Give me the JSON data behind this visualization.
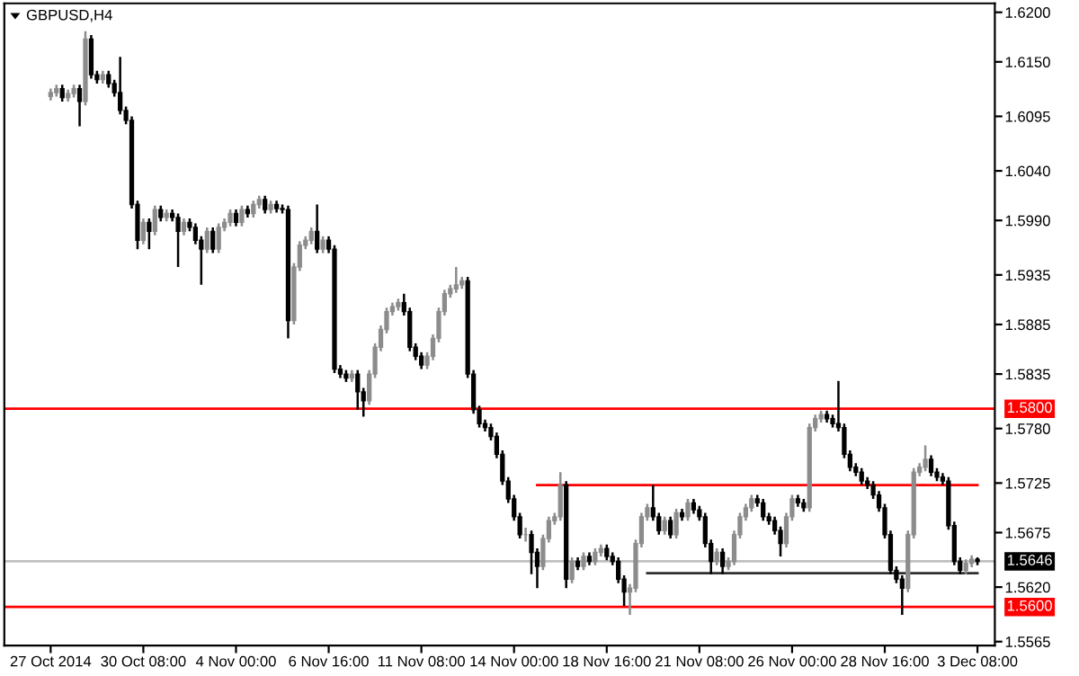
{
  "chart_data": {
    "type": "candlestick",
    "title": "GBPUSD,H4",
    "categories": [
      "27 Oct 2014",
      null,
      null,
      null,
      null,
      null,
      null,
      null,
      null,
      null,
      null,
      null,
      null,
      null,
      null,
      null,
      "30 Oct 08:00",
      null,
      null,
      null,
      null,
      null,
      null,
      null,
      null,
      null,
      null,
      null,
      null,
      null,
      null,
      null,
      "4 Nov 00:00",
      null,
      null,
      null,
      null,
      null,
      null,
      null,
      null,
      null,
      null,
      null,
      null,
      null,
      null,
      null,
      "6 Nov 16:00",
      null,
      null,
      null,
      null,
      null,
      null,
      null,
      null,
      null,
      null,
      null,
      null,
      null,
      null,
      null,
      "11 Nov 08:00",
      null,
      null,
      null,
      null,
      null,
      null,
      null,
      null,
      null,
      null,
      null,
      null,
      null,
      null,
      null,
      "14 Nov 00:00",
      null,
      null,
      null,
      null,
      null,
      null,
      null,
      null,
      null,
      null,
      null,
      null,
      null,
      null,
      null,
      "18 Nov 16:00",
      null,
      null,
      null,
      null,
      null,
      null,
      null,
      null,
      null,
      null,
      null,
      null,
      null,
      null,
      null,
      "21 Nov 08:00",
      null,
      null,
      null,
      null,
      null,
      null,
      null,
      null,
      null,
      null,
      null,
      null,
      null,
      null,
      null,
      "26 Nov 00:00",
      null,
      null,
      null,
      null,
      null,
      null,
      null,
      null,
      null,
      null,
      null,
      null,
      null,
      null,
      null,
      "28 Nov 16:00",
      null,
      null,
      null,
      null,
      null,
      null,
      null,
      null,
      null,
      null,
      null,
      null,
      null,
      null,
      null,
      "3 Dec 08:00"
    ],
    "colors": [
      "#8c8c8c",
      "#8c8c8c",
      "#000000",
      "#8c8c8c",
      "#8c8c8c",
      "#000000",
      "#8c8c8c",
      "#000000",
      "#000000",
      "#8c8c8c",
      "#000000",
      "#000000",
      "#000000",
      "#000000",
      "#000000",
      "#000000",
      "#8c8c8c",
      "#000000",
      "#8c8c8c",
      "#000000",
      "#8c8c8c",
      "#000000",
      "#000000",
      "#8c8c8c",
      "#000000",
      "#000000",
      "#000000",
      "#8c8c8c",
      "#000000",
      "#8c8c8c",
      "#8c8c8c",
      "#8c8c8c",
      "#000000",
      "#8c8c8c",
      "#000000",
      "#8c8c8c",
      "#8c8c8c",
      "#000000",
      "#8c8c8c",
      "#000000",
      "#000000",
      "#000000",
      "#8c8c8c",
      "#8c8c8c",
      "#8c8c8c",
      "#8c8c8c",
      "#000000",
      "#8c8c8c",
      "#000000",
      "#000000",
      "#000000",
      "#000000",
      "#8c8c8c",
      "#000000",
      "#000000",
      "#8c8c8c",
      "#8c8c8c",
      "#8c8c8c",
      "#8c8c8c",
      "#8c8c8c",
      "#8c8c8c",
      "#000000",
      "#000000",
      "#000000",
      "#000000",
      "#8c8c8c",
      "#8c8c8c",
      "#8c8c8c",
      "#8c8c8c",
      "#8c8c8c",
      "#8c8c8c",
      "#8c8c8c",
      "#000000",
      "#000000",
      "#000000",
      "#000000",
      "#000000",
      "#000000",
      "#000000",
      "#000000",
      "#000000",
      "#000000",
      "#8c8c8c",
      "#000000",
      "#000000",
      "#8c8c8c",
      "#8c8c8c",
      "#8c8c8c",
      "#8c8c8c",
      "#000000",
      "#8c8c8c",
      "#000000",
      "#8c8c8c",
      "#000000",
      "#8c8c8c",
      "#8c8c8c",
      "#000000",
      "#000000",
      "#000000",
      "#000000",
      "#8c8c8c",
      "#8c8c8c",
      "#8c8c8c",
      "#8c8c8c",
      "#000000",
      "#000000",
      "#8c8c8c",
      "#000000",
      "#8c8c8c",
      "#000000",
      "#8c8c8c",
      "#000000",
      "#000000",
      "#000000",
      "#000000",
      "#8c8c8c",
      "#000000",
      "#8c8c8c",
      "#8c8c8c",
      "#8c8c8c",
      "#8c8c8c",
      "#8c8c8c",
      "#000000",
      "#000000",
      "#000000",
      "#000000",
      "#000000",
      "#8c8c8c",
      "#8c8c8c",
      "#000000",
      "#000000",
      "#8c8c8c",
      "#8c8c8c",
      "#8c8c8c",
      "#000000",
      "#000000",
      "#000000",
      "#000000",
      "#000000",
      "#000000",
      "#000000",
      "#000000",
      "#000000",
      "#000000",
      "#000000",
      "#000000",
      "#000000",
      "#000000",
      "#8c8c8c",
      "#8c8c8c",
      "#8c8c8c",
      "#8c8c8c",
      "#000000",
      "#000000",
      "#000000",
      "#000000",
      "#000000",
      "#000000",
      "#8c8c8c",
      "#8c8c8c",
      "#000000"
    ],
    "ohlc": [
      [
        1.6115,
        1.6123,
        1.6111,
        1.6119
      ],
      [
        1.6119,
        1.6127,
        1.6115,
        1.6123
      ],
      [
        1.6123,
        1.6127,
        1.611,
        1.6114
      ],
      [
        1.6114,
        1.6122,
        1.611,
        1.6118
      ],
      [
        1.6118,
        1.6127,
        1.6114,
        1.6123
      ],
      [
        1.6123,
        1.6127,
        1.6085,
        1.611
      ],
      [
        1.611,
        1.6181,
        1.6106,
        1.6173
      ],
      [
        1.6173,
        1.6177,
        1.6133,
        1.6137
      ],
      [
        1.6137,
        1.6141,
        1.6128,
        1.6132
      ],
      [
        1.6132,
        1.6141,
        1.6128,
        1.6137
      ],
      [
        1.6137,
        1.6141,
        1.6124,
        1.6128
      ],
      [
        1.6128,
        1.6132,
        1.6115,
        1.6119
      ],
      [
        1.6119,
        1.6155,
        1.6097,
        1.6101
      ],
      [
        1.6101,
        1.6105,
        1.6087,
        1.6091
      ],
      [
        1.6091,
        1.6095,
        1.6002,
        1.6006
      ],
      [
        1.6006,
        1.601,
        1.5961,
        1.597
      ],
      [
        1.597,
        1.5992,
        1.5966,
        1.5988
      ],
      [
        1.5988,
        1.5992,
        1.5961,
        1.5979
      ],
      [
        1.5979,
        1.6005,
        1.5975,
        1.6001
      ],
      [
        1.6001,
        1.6005,
        1.5989,
        1.5993
      ],
      [
        1.5993,
        1.6001,
        1.5989,
        1.5997
      ],
      [
        1.5997,
        1.6001,
        1.5989,
        1.5993
      ],
      [
        1.5993,
        1.5997,
        1.5943,
        1.5979
      ],
      [
        1.5979,
        1.5992,
        1.5975,
        1.5988
      ],
      [
        1.5988,
        1.5992,
        1.5979,
        1.5983
      ],
      [
        1.5983,
        1.5987,
        1.5966,
        1.597
      ],
      [
        1.597,
        1.5974,
        1.5925,
        1.5961
      ],
      [
        1.5961,
        1.5983,
        1.5957,
        1.5979
      ],
      [
        1.5979,
        1.5983,
        1.5957,
        1.5961
      ],
      [
        1.5961,
        1.5987,
        1.5957,
        1.5983
      ],
      [
        1.5983,
        1.5992,
        1.5979,
        1.5988
      ],
      [
        1.5988,
        1.6001,
        1.5984,
        1.5997
      ],
      [
        1.5997,
        1.6001,
        1.5984,
        1.5988
      ],
      [
        1.5988,
        1.6005,
        1.5984,
        1.6001
      ],
      [
        1.6001,
        1.6005,
        1.5993,
        1.5997
      ],
      [
        1.5997,
        1.601,
        1.5993,
        1.6006
      ],
      [
        1.6006,
        1.6015,
        1.6002,
        1.6011
      ],
      [
        1.6011,
        1.6015,
        1.5997,
        1.6001
      ],
      [
        1.6001,
        1.601,
        1.5997,
        1.6006
      ],
      [
        1.6006,
        1.601,
        1.5998,
        1.6002
      ],
      [
        1.6002,
        1.6006,
        1.5997,
        1.6001
      ],
      [
        1.6001,
        1.6005,
        1.5871,
        1.5889
      ],
      [
        1.5889,
        1.5947,
        1.5885,
        1.5943
      ],
      [
        1.5943,
        1.5969,
        1.5939,
        1.5965
      ],
      [
        1.5965,
        1.5974,
        1.5961,
        1.597
      ],
      [
        1.597,
        1.5983,
        1.5966,
        1.5979
      ],
      [
        1.5979,
        1.6006,
        1.5957,
        1.5961
      ],
      [
        1.5961,
        1.5974,
        1.5957,
        1.597
      ],
      [
        1.597,
        1.5974,
        1.5957,
        1.5961
      ],
      [
        1.5961,
        1.5965,
        1.5836,
        1.584
      ],
      [
        1.584,
        1.5844,
        1.5831,
        1.5835
      ],
      [
        1.5835,
        1.5839,
        1.5827,
        1.5831
      ],
      [
        1.5831,
        1.5839,
        1.5827,
        1.5835
      ],
      [
        1.5835,
        1.5839,
        1.5799,
        1.5817
      ],
      [
        1.5817,
        1.5821,
        1.5792,
        1.5808
      ],
      [
        1.5808,
        1.5839,
        1.5804,
        1.5835
      ],
      [
        1.5835,
        1.5866,
        1.5831,
        1.5862
      ],
      [
        1.5862,
        1.5884,
        1.5858,
        1.588
      ],
      [
        1.588,
        1.5902,
        1.5876,
        1.5898
      ],
      [
        1.5898,
        1.5907,
        1.5894,
        1.5903
      ],
      [
        1.5903,
        1.5911,
        1.5899,
        1.5907
      ],
      [
        1.5907,
        1.5916,
        1.5894,
        1.5898
      ],
      [
        1.5898,
        1.5902,
        1.5858,
        1.5862
      ],
      [
        1.5862,
        1.5866,
        1.5849,
        1.5853
      ],
      [
        1.5853,
        1.5857,
        1.584,
        1.5844
      ],
      [
        1.5844,
        1.5857,
        1.584,
        1.5853
      ],
      [
        1.5853,
        1.5875,
        1.5849,
        1.5871
      ],
      [
        1.5871,
        1.5902,
        1.5867,
        1.5898
      ],
      [
        1.5898,
        1.592,
        1.5894,
        1.5916
      ],
      [
        1.5916,
        1.5925,
        1.5912,
        1.5921
      ],
      [
        1.5921,
        1.5943,
        1.5917,
        1.5925
      ],
      [
        1.5925,
        1.5933,
        1.5921,
        1.5929
      ],
      [
        1.5929,
        1.5933,
        1.5831,
        1.5835
      ],
      [
        1.5835,
        1.5839,
        1.5795,
        1.5799
      ],
      [
        1.5799,
        1.5803,
        1.5781,
        1.5785
      ],
      [
        1.5785,
        1.5789,
        1.5777,
        1.5781
      ],
      [
        1.5781,
        1.5785,
        1.5768,
        1.5772
      ],
      [
        1.5772,
        1.5776,
        1.575,
        1.5754
      ],
      [
        1.5754,
        1.5758,
        1.5723,
        1.5727
      ],
      [
        1.5727,
        1.5731,
        1.5705,
        1.5709
      ],
      [
        1.5709,
        1.5713,
        1.5687,
        1.5691
      ],
      [
        1.5691,
        1.5695,
        1.5669,
        1.5673
      ],
      [
        1.5673,
        1.568,
        1.5666,
        1.5673
      ],
      [
        1.5673,
        1.5677,
        1.5633,
        1.5655
      ],
      [
        1.5655,
        1.5659,
        1.5619,
        1.5641
      ],
      [
        1.5641,
        1.5673,
        1.5637,
        1.5669
      ],
      [
        1.5669,
        1.5691,
        1.5665,
        1.5687
      ],
      [
        1.5687,
        1.5695,
        1.5683,
        1.5691
      ],
      [
        1.5691,
        1.5736,
        1.5687,
        1.5723
      ],
      [
        1.5723,
        1.5727,
        1.5619,
        1.5628
      ],
      [
        1.5628,
        1.565,
        1.5624,
        1.5646
      ],
      [
        1.5646,
        1.565,
        1.5637,
        1.5641
      ],
      [
        1.5641,
        1.5655,
        1.5637,
        1.5651
      ],
      [
        1.5651,
        1.5655,
        1.5642,
        1.5646
      ],
      [
        1.5646,
        1.5659,
        1.5642,
        1.5655
      ],
      [
        1.5655,
        1.5663,
        1.5651,
        1.5659
      ],
      [
        1.5659,
        1.5663,
        1.5647,
        1.5651
      ],
      [
        1.5651,
        1.5655,
        1.5642,
        1.5646
      ],
      [
        1.5646,
        1.565,
        1.5624,
        1.5628
      ],
      [
        1.5628,
        1.5632,
        1.5601,
        1.5615
      ],
      [
        1.5615,
        1.5623,
        1.5592,
        1.5619
      ],
      [
        1.5619,
        1.5668,
        1.5615,
        1.5664
      ],
      [
        1.5664,
        1.5695,
        1.566,
        1.5691
      ],
      [
        1.5691,
        1.5704,
        1.5687,
        1.57
      ],
      [
        1.57,
        1.5723,
        1.5687,
        1.5691
      ],
      [
        1.5691,
        1.5695,
        1.5673,
        1.5677
      ],
      [
        1.5677,
        1.5691,
        1.5673,
        1.5687
      ],
      [
        1.5687,
        1.5691,
        1.5669,
        1.5673
      ],
      [
        1.5673,
        1.5699,
        1.5669,
        1.5695
      ],
      [
        1.5695,
        1.5699,
        1.5687,
        1.5691
      ],
      [
        1.5691,
        1.5709,
        1.5687,
        1.5705
      ],
      [
        1.5705,
        1.5709,
        1.5694,
        1.5698
      ],
      [
        1.5698,
        1.5702,
        1.5687,
        1.5691
      ],
      [
        1.5691,
        1.5695,
        1.566,
        1.5664
      ],
      [
        1.5664,
        1.5668,
        1.5633,
        1.5646
      ],
      [
        1.5646,
        1.5659,
        1.5642,
        1.5655
      ],
      [
        1.5655,
        1.5659,
        1.5633,
        1.5641
      ],
      [
        1.5641,
        1.565,
        1.5637,
        1.5646
      ],
      [
        1.5646,
        1.5677,
        1.5642,
        1.5673
      ],
      [
        1.5673,
        1.5695,
        1.5669,
        1.5691
      ],
      [
        1.5691,
        1.5704,
        1.5687,
        1.57
      ],
      [
        1.57,
        1.5713,
        1.5696,
        1.5709
      ],
      [
        1.5709,
        1.5713,
        1.5701,
        1.5705
      ],
      [
        1.5705,
        1.5709,
        1.5687,
        1.5691
      ],
      [
        1.5691,
        1.5695,
        1.5683,
        1.5687
      ],
      [
        1.5687,
        1.5691,
        1.5673,
        1.5677
      ],
      [
        1.5677,
        1.5681,
        1.5651,
        1.5664
      ],
      [
        1.5664,
        1.5695,
        1.566,
        1.5691
      ],
      [
        1.5691,
        1.5713,
        1.5687,
        1.5709
      ],
      [
        1.5709,
        1.5713,
        1.5701,
        1.5705
      ],
      [
        1.5705,
        1.5709,
        1.5696,
        1.57
      ],
      [
        1.57,
        1.5785,
        1.5696,
        1.5781
      ],
      [
        1.5781,
        1.5794,
        1.5777,
        1.579
      ],
      [
        1.579,
        1.5798,
        1.5786,
        1.5794
      ],
      [
        1.5794,
        1.5798,
        1.5786,
        1.579
      ],
      [
        1.579,
        1.5794,
        1.5781,
        1.5785
      ],
      [
        1.5785,
        1.5828,
        1.5777,
        1.5781
      ],
      [
        1.5781,
        1.5785,
        1.575,
        1.5754
      ],
      [
        1.5754,
        1.5758,
        1.5737,
        1.5741
      ],
      [
        1.5741,
        1.5745,
        1.5732,
        1.5736
      ],
      [
        1.5736,
        1.574,
        1.5723,
        1.5727
      ],
      [
        1.5727,
        1.5731,
        1.5719,
        1.5723
      ],
      [
        1.5723,
        1.5727,
        1.5709,
        1.5713
      ],
      [
        1.5713,
        1.5717,
        1.5696,
        1.57
      ],
      [
        1.57,
        1.5704,
        1.5669,
        1.5673
      ],
      [
        1.5673,
        1.5677,
        1.5633,
        1.5637
      ],
      [
        1.5637,
        1.5641,
        1.5624,
        1.5628
      ],
      [
        1.5628,
        1.5632,
        1.5592,
        1.5619
      ],
      [
        1.5619,
        1.5677,
        1.5615,
        1.5673
      ],
      [
        1.5673,
        1.574,
        1.5669,
        1.5736
      ],
      [
        1.5736,
        1.5745,
        1.5732,
        1.5741
      ],
      [
        1.5741,
        1.5763,
        1.5737,
        1.5749
      ],
      [
        1.5749,
        1.5753,
        1.5732,
        1.5736
      ],
      [
        1.5736,
        1.574,
        1.5727,
        1.5731
      ],
      [
        1.5731,
        1.5735,
        1.5723,
        1.5727
      ],
      [
        1.5727,
        1.5731,
        1.5678,
        1.5682
      ],
      [
        1.5682,
        1.5686,
        1.5642,
        1.5646
      ],
      [
        1.5646,
        1.565,
        1.5633,
        1.5637
      ],
      [
        1.5637,
        1.5648,
        1.5633,
        1.5644
      ],
      [
        1.5644,
        1.5652,
        1.564,
        1.5648
      ],
      [
        1.5648,
        1.565,
        1.5642,
        1.5646
      ]
    ],
    "series": [
      {
        "type": "line",
        "color": "#ff0000",
        "values": [
          null,
          null,
          null,
          null,
          null,
          null,
          null,
          null,
          null,
          null,
          null,
          null,
          null,
          null,
          null,
          null,
          null,
          null,
          null,
          null,
          null,
          null,
          null,
          null,
          null,
          null,
          null,
          null,
          null,
          null,
          null,
          null,
          null,
          null,
          null,
          null,
          null,
          null,
          null,
          null,
          null,
          null,
          null,
          null,
          null,
          null,
          null,
          null,
          null,
          null,
          null,
          null,
          null,
          null,
          null,
          null,
          null,
          null,
          null,
          null,
          null,
          null,
          null,
          null,
          null,
          null,
          null,
          null,
          null,
          null,
          null,
          null,
          null,
          null,
          null,
          null,
          null,
          null,
          null,
          null,
          null,
          null,
          null,
          null,
          1.5723,
          1.5723,
          1.5723,
          1.5723,
          1.5723,
          1.5723,
          1.5723,
          1.5723,
          1.5723,
          1.5723,
          1.5723,
          1.5723,
          1.5723,
          1.5723,
          1.5723,
          1.5723,
          1.5723,
          1.5723,
          1.5723,
          1.5723,
          1.5723,
          1.5723,
          1.5723,
          1.5723,
          1.5723,
          1.5723,
          1.5723,
          1.5723,
          1.5723,
          1.5723,
          1.5723,
          1.5723,
          1.5723,
          1.5723,
          1.5723,
          1.5723,
          1.5723,
          1.5723,
          1.5723,
          1.5723,
          1.5723,
          1.5723,
          1.5723,
          1.5723,
          1.5723,
          1.5723,
          1.5723,
          1.5723,
          1.5723,
          1.5723,
          1.5723,
          1.5723,
          1.5723,
          1.5723,
          1.5723,
          1.5723,
          1.5723,
          1.5723,
          1.5723,
          1.5723,
          1.5723,
          1.5723,
          1.5723,
          1.5723,
          1.5723,
          1.5723,
          1.5723,
          1.5723,
          1.5723,
          1.5723,
          1.5723,
          1.5723,
          1.5723,
          1.5723,
          1.5723,
          1.5723,
          1.5723
        ]
      },
      {
        "type": "line",
        "color": "#303030",
        "values": [
          null,
          null,
          null,
          null,
          null,
          null,
          null,
          null,
          null,
          null,
          null,
          null,
          null,
          null,
          null,
          null,
          null,
          null,
          null,
          null,
          null,
          null,
          null,
          null,
          null,
          null,
          null,
          null,
          null,
          null,
          null,
          null,
          null,
          null,
          null,
          null,
          null,
          null,
          null,
          null,
          null,
          null,
          null,
          null,
          null,
          null,
          null,
          null,
          null,
          null,
          null,
          null,
          null,
          null,
          null,
          null,
          null,
          null,
          null,
          null,
          null,
          null,
          null,
          null,
          null,
          null,
          null,
          null,
          null,
          null,
          null,
          null,
          null,
          null,
          null,
          null,
          null,
          null,
          null,
          null,
          null,
          null,
          null,
          null,
          null,
          null,
          null,
          null,
          null,
          null,
          null,
          null,
          null,
          null,
          null,
          null,
          null,
          null,
          null,
          null,
          null,
          null,
          null,
          1.5634,
          1.5634,
          1.5634,
          1.5634,
          1.5634,
          1.5634,
          1.5634,
          1.5634,
          1.5634,
          1.5634,
          1.5634,
          1.5634,
          1.5634,
          1.5634,
          1.5634,
          1.5634,
          1.5634,
          1.5634,
          1.5634,
          1.5634,
          1.5634,
          1.5634,
          1.5634,
          1.5634,
          1.5634,
          1.5634,
          1.5634,
          1.5634,
          1.5634,
          1.5634,
          1.5634,
          1.5634,
          1.5634,
          1.5634,
          1.5634,
          1.5634,
          1.5634,
          1.5634,
          1.5634,
          1.5634,
          1.5634,
          1.5634,
          1.5634,
          1.5634,
          1.5634,
          1.5634,
          1.5634,
          1.5634,
          1.5634,
          1.5634,
          1.5634,
          1.5634,
          1.5634,
          1.5634,
          1.5634,
          1.5634,
          1.5634,
          1.5634
        ]
      }
    ],
    "ref_lines": [
      {
        "axis": "y",
        "value": 1.58,
        "label": "1.5800",
        "color": "#ff0000"
      },
      {
        "axis": "y",
        "value": 1.56,
        "label": "1.5600",
        "color": "#ff0000"
      },
      {
        "axis": "y",
        "value": 1.5646,
        "label": "1.5646",
        "color": "#c0c0c0"
      }
    ],
    "ylim": [
      1.5561,
      1.6209
    ],
    "yticks": [
      {
        "value": 1.62,
        "label": "1.6200"
      },
      {
        "value": 1.615,
        "label": "1.6150"
      },
      1.6095,
      {
        "value": 1.604,
        "label": "1.6040"
      },
      {
        "value": 1.599,
        "label": "1.5990"
      },
      1.5935,
      1.5885,
      1.5835,
      {
        "value": 1.578,
        "label": "1.5780"
      },
      1.5725,
      1.5675,
      {
        "value": 1.562,
        "label": "1.5620"
      },
      1.5565
    ],
    "line_style": "solid",
    "marker": "none"
  }
}
